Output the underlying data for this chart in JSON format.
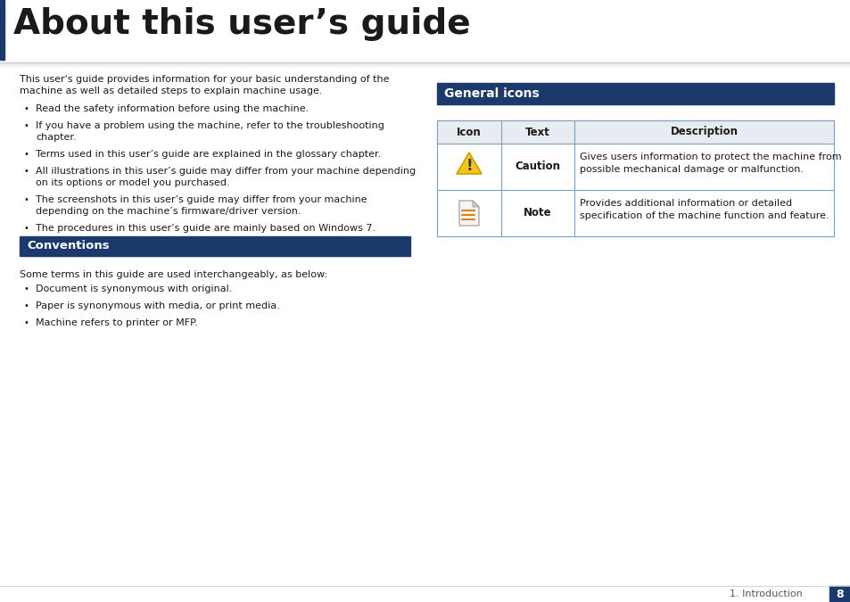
{
  "bg_color": "#ffffff",
  "title": "About this user’s guide",
  "title_color": "#1a1a1a",
  "header_accent_color": "#1b3a6b",
  "divider_color": "#aaaaaa",
  "page_text_color": "#1a1a1a",
  "intro_text_line1": "This user's guide provides information for your basic understanding of the",
  "intro_text_line2": "machine as well as detailed steps to explain machine usage.",
  "bullet_items_left": [
    [
      "Read the safety information before using the machine."
    ],
    [
      "If you have a problem using the machine, refer to the troubleshooting",
      "chapter."
    ],
    [
      "Terms used in this user’s guide are explained in the glossary chapter."
    ],
    [
      "All illustrations in this user’s guide may differ from your machine depending",
      "on its options or model you purchased."
    ],
    [
      "The screenshots in this user’s guide may differ from your machine",
      "depending on the machine’s firmware/driver version."
    ],
    [
      "The procedures in this user’s guide are mainly based on Windows 7."
    ]
  ],
  "conventions_header": "Conventions",
  "conventions_header_color": "#ffffff",
  "conventions_header_bg": "#1b3a6b",
  "conventions_intro": "Some terms in this guide are used interchangeably, as below:",
  "conventions_bullets": [
    [
      "Document is synonymous with original."
    ],
    [
      "Paper is synonymous with media, or print media."
    ],
    [
      "Machine refers to printer or MFP."
    ]
  ],
  "general_icons_header": "General icons",
  "general_icons_header_color": "#ffffff",
  "general_icons_header_bg": "#1b3a6b",
  "table_header_bg": "#e8ecf0",
  "table_border_color": "#7ba0c4",
  "table_col_headers": [
    "Icon",
    "Text",
    "Description"
  ],
  "table_rows": [
    {
      "icon_type": "caution",
      "text": "Caution",
      "description_lines": [
        "Gives users information to protect the machine from",
        "possible mechanical damage or malfunction."
      ]
    },
    {
      "icon_type": "note",
      "text": "Note",
      "description_lines": [
        "Provides additional information or detailed",
        "specification of the machine function and feature."
      ]
    }
  ],
  "footer_text": "1. Introduction",
  "footer_page": "8",
  "footer_color": "#555555",
  "footer_page_bg": "#1b3a6b"
}
